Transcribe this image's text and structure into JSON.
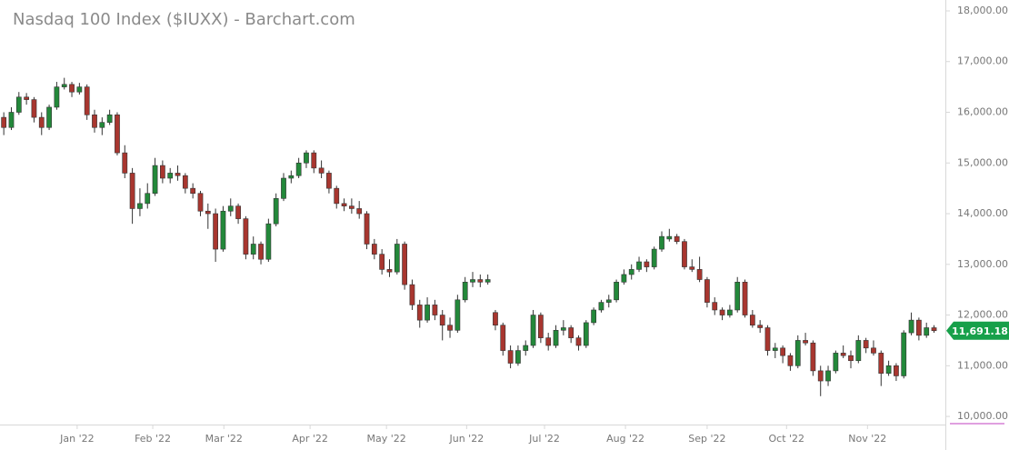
{
  "chart_data": {
    "type": "candlestick",
    "title": "Nasdaq 100 Index ($IUXX) - Barchart.com",
    "up_color": "#23883a",
    "down_color": "#a8362f",
    "tag_color": "#17a04a",
    "xlim": [
      -0.5,
      124.5
    ],
    "xticks": [
      {
        "value": 9.7,
        "label": "Jan '22"
      },
      {
        "value": 19.7,
        "label": "Feb '22"
      },
      {
        "value": 29.1,
        "label": "Mar '22"
      },
      {
        "value": 40.5,
        "label": "Apr '22"
      },
      {
        "value": 50.6,
        "label": "May '22"
      },
      {
        "value": 61.2,
        "label": "Jun '22"
      },
      {
        "value": 71.5,
        "label": "Jul '22"
      },
      {
        "value": 82.2,
        "label": "Aug '22"
      },
      {
        "value": 93.0,
        "label": "Sep '22"
      },
      {
        "value": 103.5,
        "label": "Oct '22"
      },
      {
        "value": 114.2,
        "label": "Nov '22"
      }
    ],
    "ylim": [
      9840,
      18215
    ],
    "yticks": [
      {
        "value": 10000,
        "label": "10,000.00"
      },
      {
        "value": 11000,
        "label": "11,000.00"
      },
      {
        "value": 12000,
        "label": "12,000.00"
      },
      {
        "value": 13000,
        "label": "13,000.00"
      },
      {
        "value": 14000,
        "label": "14,000.00"
      },
      {
        "value": 15000,
        "label": "15,000.00"
      },
      {
        "value": 16000,
        "label": "16,000.00"
      },
      {
        "value": 17000,
        "label": "17,000.00"
      },
      {
        "value": 18000,
        "label": "18,000.00"
      }
    ],
    "price_tag": {
      "value": 11691.18,
      "label": "11,691.18"
    },
    "open": [
      15900,
      15700,
      16000,
      16300,
      16250,
      15900,
      15700,
      16100,
      16500,
      16550,
      16400,
      16500,
      15950,
      15700,
      15800,
      15950,
      15200,
      14800,
      14100,
      14200,
      14400,
      14950,
      14700,
      14800,
      14750,
      14500,
      14400,
      14050,
      14000,
      13300,
      14050,
      14150,
      13900,
      13200,
      13400,
      13100,
      13800,
      14300,
      14700,
      14750,
      15000,
      15200,
      14900,
      14800,
      14500,
      14200,
      14150,
      14100,
      14000,
      13400,
      13200,
      12900,
      12850,
      13400,
      12600,
      12200,
      11900,
      12200,
      12000,
      11800,
      11700,
      12300,
      12650,
      12700,
      12650,
      12050,
      11800,
      11300,
      11050,
      11300,
      11400,
      12000,
      11550,
      11400,
      11700,
      11750,
      11550,
      11400,
      11850,
      12100,
      12250,
      12300,
      12650,
      12800,
      12900,
      13050,
      12950,
      13300,
      13500,
      13550,
      13450,
      12950,
      12900,
      12700,
      12250,
      12100,
      12000,
      12100,
      12650,
      12000,
      11800,
      11750,
      11300,
      11350,
      11200,
      11000,
      11500,
      11450,
      10900,
      10700,
      10900,
      11250,
      11200,
      11100,
      11500,
      11350,
      11250,
      10850,
      11000,
      10800,
      11650,
      11900,
      11600,
      11750
    ],
    "high": [
      16000,
      16100,
      16400,
      16380,
      16300,
      16000,
      16150,
      16600,
      16680,
      16600,
      16580,
      16550,
      16050,
      15900,
      16050,
      16000,
      15350,
      14900,
      14500,
      14600,
      15100,
      15050,
      14900,
      14950,
      14800,
      14600,
      14450,
      14200,
      14100,
      14150,
      14300,
      14200,
      13950,
      13550,
      13450,
      13900,
      14400,
      14800,
      14850,
      15100,
      15250,
      15250,
      15050,
      14850,
      14550,
      14300,
      14300,
      14250,
      14050,
      13500,
      13300,
      13100,
      13500,
      13450,
      12700,
      12300,
      12350,
      12300,
      12100,
      11950,
      12400,
      12750,
      12850,
      12800,
      12800,
      12100,
      11850,
      11400,
      11400,
      11500,
      12100,
      12050,
      11650,
      11800,
      11900,
      11800,
      11600,
      11900,
      12150,
      12300,
      12400,
      12700,
      12900,
      13000,
      13150,
      13100,
      13350,
      13650,
      13700,
      13600,
      13500,
      13100,
      13150,
      12750,
      12350,
      12150,
      12200,
      12750,
      12700,
      12100,
      11900,
      11800,
      11450,
      11400,
      11250,
      11600,
      11650,
      11500,
      11000,
      11000,
      11300,
      11400,
      11300,
      11600,
      11550,
      11500,
      11300,
      11100,
      11050,
      11700,
      12050,
      11950,
      11850,
      11800
    ],
    "low": [
      15550,
      15650,
      15950,
      16150,
      15800,
      15550,
      15650,
      16050,
      16450,
      16300,
      16350,
      15850,
      15600,
      15550,
      15750,
      15150,
      14700,
      13800,
      13950,
      14100,
      14350,
      14600,
      14600,
      14650,
      14400,
      14300,
      13950,
      13700,
      13050,
      13250,
      13950,
      13800,
      13100,
      13100,
      13000,
      13050,
      13750,
      14250,
      14600,
      14700,
      14900,
      14800,
      14700,
      14400,
      14100,
      14050,
      14000,
      13900,
      13300,
      13100,
      12800,
      12750,
      12800,
      12500,
      12100,
      11750,
      11850,
      11900,
      11500,
      11550,
      11650,
      12250,
      12550,
      12550,
      12600,
      11700,
      11200,
      10950,
      11000,
      11200,
      11350,
      11450,
      11300,
      11350,
      11600,
      11450,
      11300,
      11350,
      11800,
      12050,
      12150,
      12250,
      12600,
      12700,
      12850,
      12850,
      12900,
      13250,
      13450,
      13400,
      12900,
      12850,
      12650,
      12150,
      12000,
      11900,
      11950,
      12050,
      11950,
      11750,
      11650,
      11200,
      11150,
      11050,
      10900,
      10950,
      11400,
      10800,
      10400,
      10600,
      10850,
      11150,
      10950,
      11050,
      11250,
      11200,
      10600,
      10800,
      10700,
      10750,
      11600,
      11500,
      11550,
      11650
    ],
    "close": [
      15700,
      16000,
      16300,
      16250,
      15900,
      15700,
      16100,
      16500,
      16550,
      16400,
      16500,
      15950,
      15700,
      15800,
      15950,
      15200,
      14800,
      14100,
      14200,
      14400,
      14950,
      14700,
      14800,
      14750,
      14500,
      14400,
      14050,
      14000,
      13300,
      14050,
      14150,
      13900,
      13200,
      13400,
      13100,
      13800,
      14300,
      14700,
      14750,
      15000,
      15200,
      14900,
      14800,
      14500,
      14200,
      14150,
      14100,
      14000,
      13400,
      13200,
      12900,
      12850,
      13400,
      12600,
      12200,
      11900,
      12200,
      12000,
      11800,
      11700,
      12300,
      12650,
      12700,
      12650,
      12700,
      11800,
      11300,
      11050,
      11300,
      11400,
      12000,
      11550,
      11400,
      11700,
      11750,
      11550,
      11400,
      11850,
      12100,
      12250,
      12300,
      12650,
      12800,
      12900,
      13050,
      12950,
      13300,
      13550,
      13550,
      13450,
      12950,
      12900,
      12700,
      12250,
      12100,
      12000,
      12100,
      12650,
      12000,
      11800,
      11750,
      11300,
      11350,
      11200,
      11000,
      11500,
      11450,
      10900,
      10700,
      10900,
      11250,
      11200,
      11100,
      11500,
      11350,
      11250,
      10850,
      11000,
      10800,
      11650,
      11900,
      11600,
      11750,
      11691.18
    ]
  }
}
